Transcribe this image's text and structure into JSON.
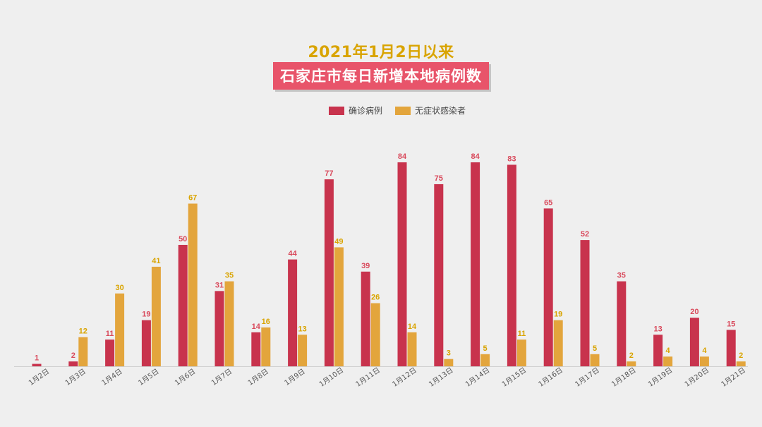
{
  "chart_data": {
    "type": "bar",
    "title": "2021年1月2日以来",
    "subtitle": "石家庄市每日新增本地病例数",
    "categories": [
      "1月2日",
      "1月3日",
      "1月4日",
      "1月5日",
      "1月6日",
      "1月7日",
      "1月8日",
      "1月9日",
      "1月10日",
      "1月11日",
      "1月12日",
      "1月13日",
      "1月14日",
      "1月15日",
      "1月16日",
      "1月17日",
      "1月18日",
      "1月19日",
      "1月20日",
      "1月21日"
    ],
    "series": [
      {
        "name": "确诊病例",
        "color": "#c8334d",
        "label_color": "#d94a5c",
        "values": [
          1,
          2,
          11,
          19,
          50,
          31,
          14,
          44,
          77,
          39,
          84,
          75,
          84,
          83,
          65,
          52,
          35,
          13,
          20,
          15
        ]
      },
      {
        "name": "无症状感染者",
        "color": "#e3a53c",
        "label_color": "#d9a400",
        "values": [
          null,
          12,
          30,
          41,
          67,
          35,
          16,
          13,
          49,
          26,
          14,
          3,
          5,
          11,
          19,
          5,
          2,
          4,
          4,
          2
        ]
      }
    ],
    "xlabel": "",
    "ylabel": "",
    "ylim": [
      0,
      84
    ],
    "grid": false,
    "legend": "top-center"
  }
}
